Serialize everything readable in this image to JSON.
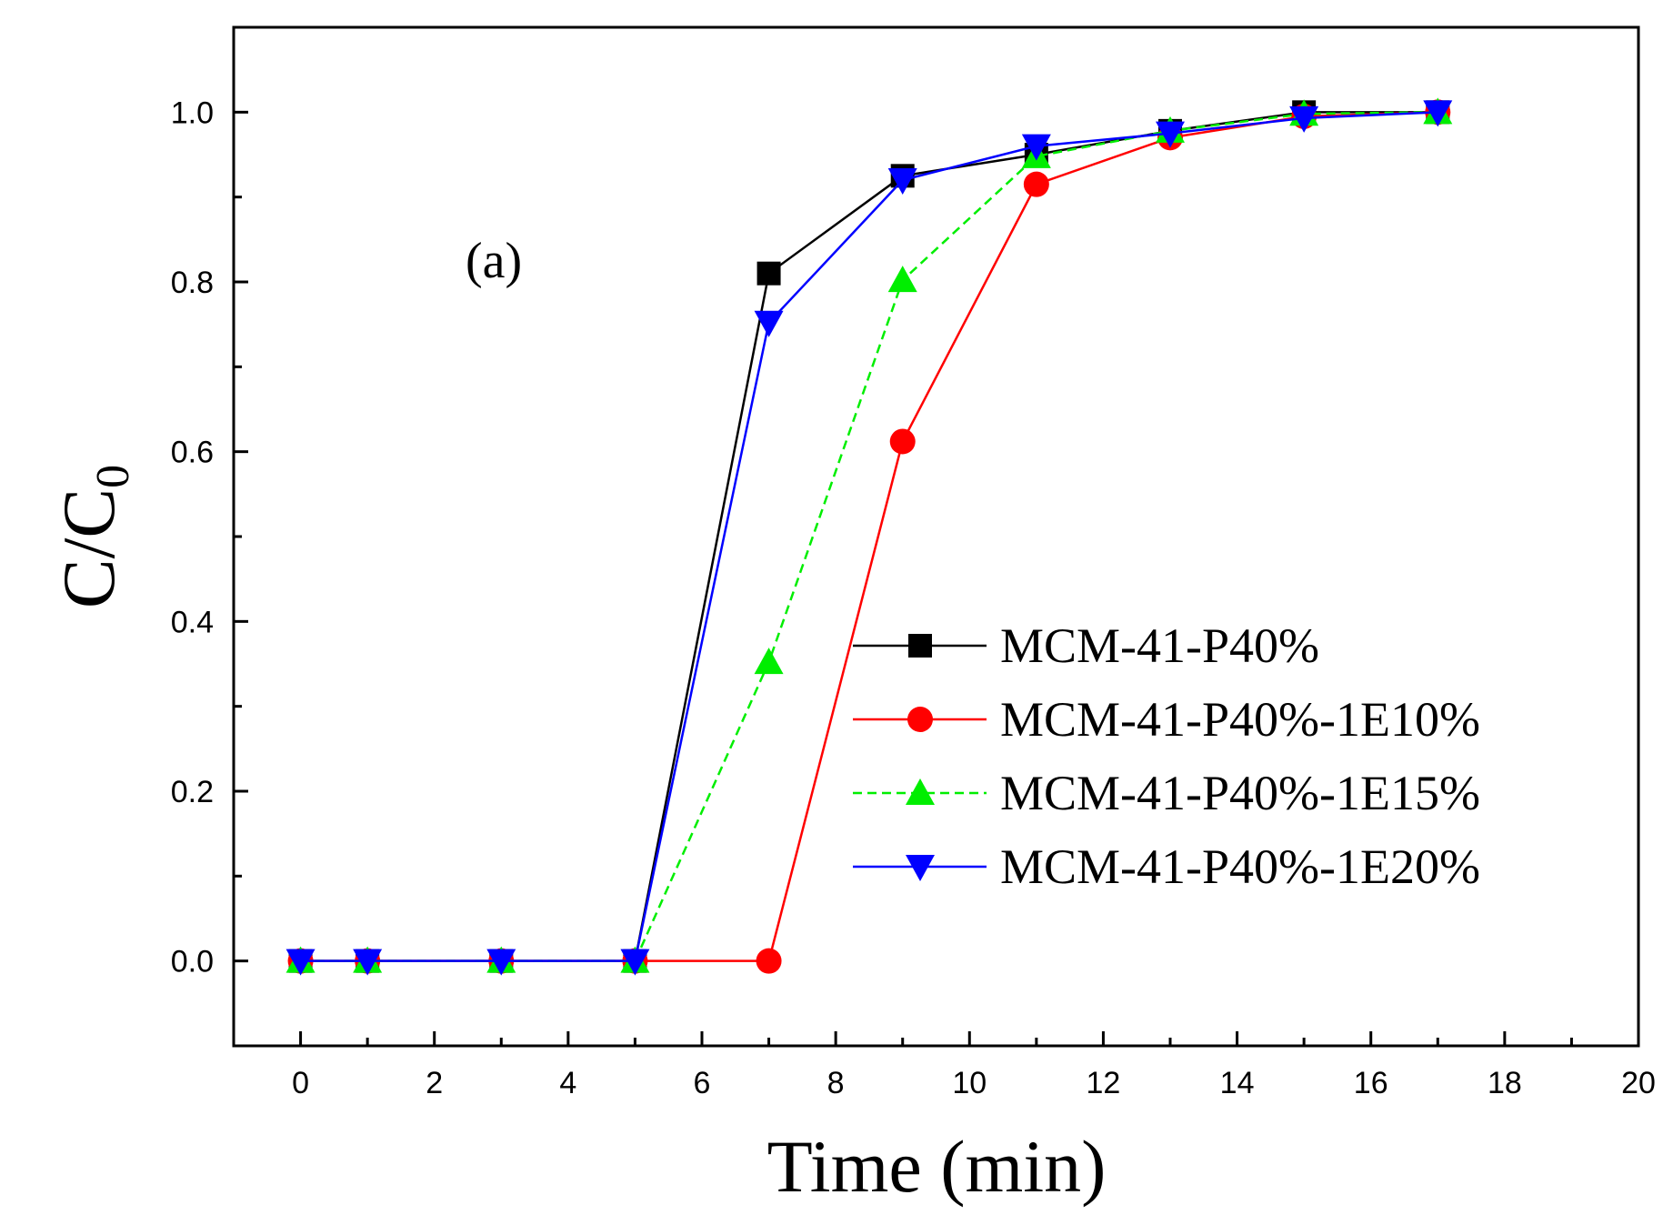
{
  "chart_data": {
    "type": "line",
    "title": "",
    "annotation": "(a)",
    "xlabel": "Time (min)",
    "ylabel_main": "C/C",
    "ylabel_sub": "0",
    "xlim": [
      -1,
      20
    ],
    "ylim": [
      -0.1,
      1.1
    ],
    "xticks": [
      0,
      2,
      4,
      6,
      8,
      10,
      12,
      14,
      16,
      18,
      20
    ],
    "yticks": [
      0.0,
      0.2,
      0.4,
      0.6,
      0.8,
      1.0
    ],
    "legend_position": "center-right",
    "x": [
      0,
      1,
      3,
      5,
      7,
      9,
      11,
      13,
      15,
      17
    ],
    "series": [
      {
        "name": "MCM-41-P40%",
        "color": "#000000",
        "marker": "square",
        "dashed": false,
        "values": [
          0,
          0,
          0,
          0,
          0.81,
          0.925,
          0.95,
          0.978,
          1.0,
          1.0
        ]
      },
      {
        "name": "MCM-41-P40%-1E10%",
        "color": "#ff0000",
        "marker": "circle",
        "dashed": false,
        "values": [
          0,
          0,
          0,
          0,
          0,
          0.612,
          0.915,
          0.97,
          0.995,
          1.0
        ]
      },
      {
        "name": "MCM-41-P40%-1E15%",
        "color": "#00ee00",
        "marker": "triangle-up",
        "dashed": true,
        "values": [
          0,
          0,
          0,
          0,
          0.352,
          0.802,
          0.948,
          0.978,
          0.998,
          1.0
        ]
      },
      {
        "name": "MCM-41-P40%-1E20%",
        "color": "#0000ff",
        "marker": "triangle-down",
        "dashed": false,
        "values": [
          0,
          0,
          0,
          0,
          0.752,
          0.92,
          0.96,
          0.975,
          0.993,
          1.0
        ]
      }
    ]
  }
}
